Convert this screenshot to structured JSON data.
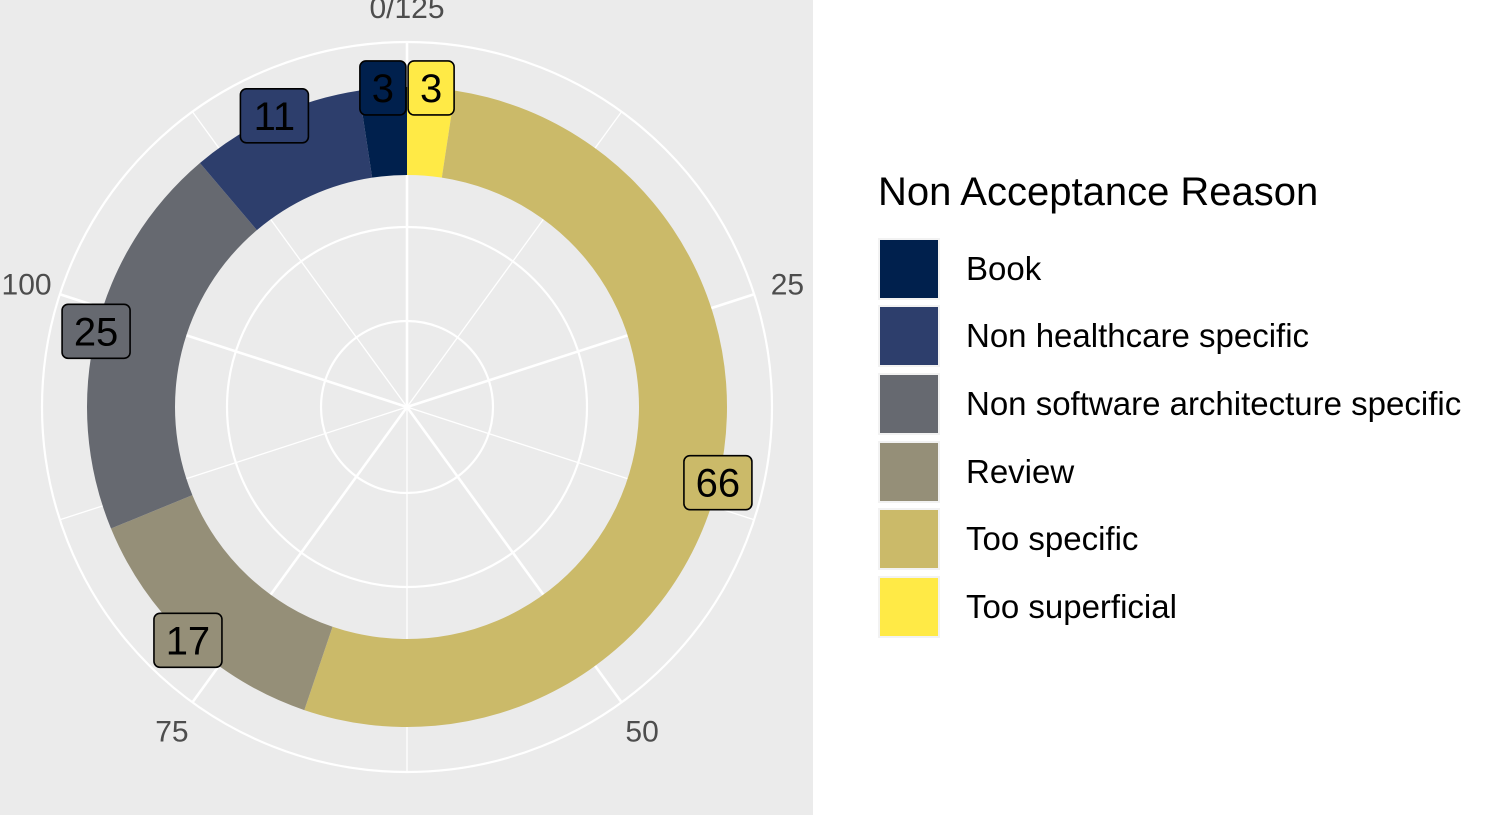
{
  "chart_data": {
    "type": "pie",
    "title": "",
    "legend_title": "Non Acceptance Reason",
    "legend_position": "right",
    "theta_ticks": [
      "0/125",
      "25",
      "50",
      "75",
      "100"
    ],
    "theta_range": [
      0,
      125
    ],
    "series": [
      {
        "name": "Book",
        "value": 3,
        "color": "#00204d"
      },
      {
        "name": "Non healthcare specific",
        "value": 11,
        "color": "#2d3e6c"
      },
      {
        "name": "Non software architecture specific",
        "value": 25,
        "color": "#666970"
      },
      {
        "name": "Review",
        "value": 17,
        "color": "#958f78"
      },
      {
        "name": "Too specific",
        "value": 66,
        "color": "#cbba69"
      },
      {
        "name": "Too superficial",
        "value": 3,
        "color": "#ffea46"
      }
    ],
    "order_clockwise_from_top": [
      "Too superficial",
      "Too specific",
      "Review",
      "Non software architecture specific",
      "Non healthcare specific",
      "Book"
    ],
    "grid": true,
    "background": "#ebebeb"
  }
}
